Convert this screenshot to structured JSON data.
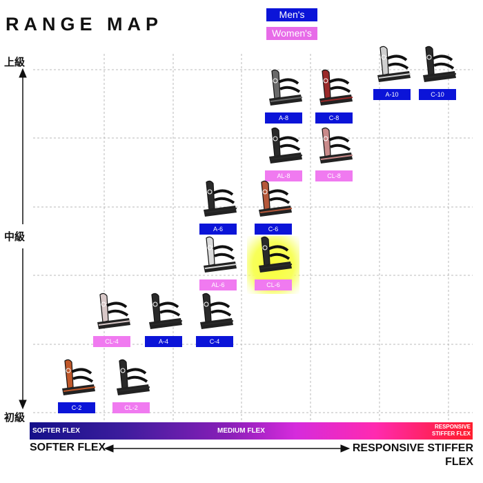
{
  "title": "RANGE MAP",
  "legend": {
    "men": "Men's",
    "women": "Women's",
    "men_color": "#0b14d8",
    "women_color": "#e76be8"
  },
  "levels": {
    "top": "上級",
    "middle": "中級",
    "bottom": "初級"
  },
  "flexbar": {
    "left": "SOFTER FLEX",
    "middle": "MEDIUM FLEX",
    "right_line1": "RESPONSIVE",
    "right_line2": "STIFFER FLEX"
  },
  "bottom_axis": {
    "left": "SOFTER FLEX",
    "right_line1": "RESPONSIVE STIFFER",
    "right_line2": "FLEX"
  },
  "highlighted": "CL-6",
  "bindings": [
    {
      "name": "A-10",
      "gender": "men"
    },
    {
      "name": "C-10",
      "gender": "men"
    },
    {
      "name": "A-8",
      "gender": "men"
    },
    {
      "name": "C-8",
      "gender": "men"
    },
    {
      "name": "AL-8",
      "gender": "women"
    },
    {
      "name": "CL-8",
      "gender": "women"
    },
    {
      "name": "A-6",
      "gender": "men"
    },
    {
      "name": "C-6",
      "gender": "men"
    },
    {
      "name": "AL-6",
      "gender": "women"
    },
    {
      "name": "CL-6",
      "gender": "women"
    },
    {
      "name": "CL-4",
      "gender": "women"
    },
    {
      "name": "A-4",
      "gender": "men"
    },
    {
      "name": "C-4",
      "gender": "men"
    },
    {
      "name": "C-2",
      "gender": "men"
    },
    {
      "name": "CL-2",
      "gender": "women"
    }
  ]
}
